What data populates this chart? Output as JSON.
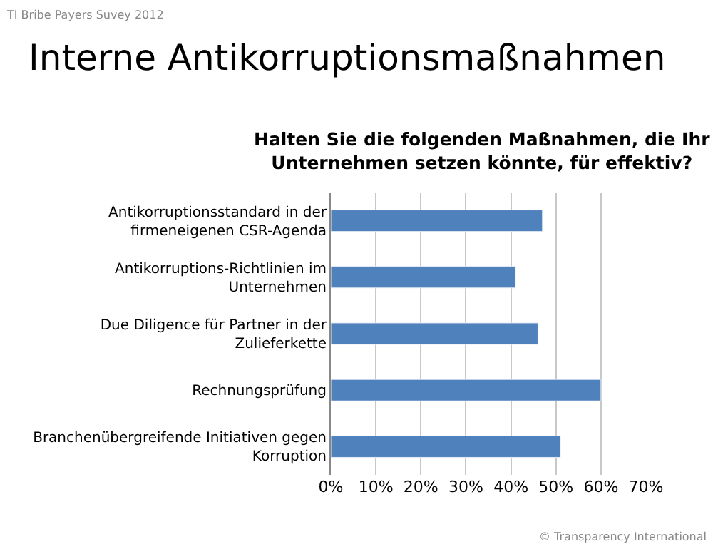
{
  "chart_data": {
    "type": "bar",
    "orientation": "horizontal",
    "title": "Interne Antikorruptionsmaßnahmen",
    "subtitle": "Halten Sie die folgenden Maßnahmen, die Ihr Unternehmen setzen könnte, für effektiv?",
    "categories": [
      "Antikorruptionsstandard in der firmeneigenen CSR-Agenda",
      "Antikorruptions-Richtlinien im Unternehmen",
      "Due Diligence für Partner in der Zulieferkette",
      "Rechnungsprüfung",
      "Branchenübergreifende Initiativen gegen Korruption"
    ],
    "values": [
      47,
      41,
      46,
      60,
      51
    ],
    "color": "#4f81bd",
    "xlim": [
      0,
      70
    ],
    "xticks": [
      {
        "value": 0,
        "label": "0%"
      },
      {
        "value": 10,
        "label": "10%"
      },
      {
        "value": 20,
        "label": "20%"
      },
      {
        "value": 30,
        "label": "30%"
      },
      {
        "value": 40,
        "label": "40%"
      },
      {
        "value": 50,
        "label": "50%"
      },
      {
        "value": 60,
        "label": "60%"
      },
      {
        "value": 70,
        "label": "70%"
      }
    ],
    "grid": "x",
    "annotations": [
      "TI Bribe Payers Suvey 2012",
      "© Transparency International"
    ]
  }
}
